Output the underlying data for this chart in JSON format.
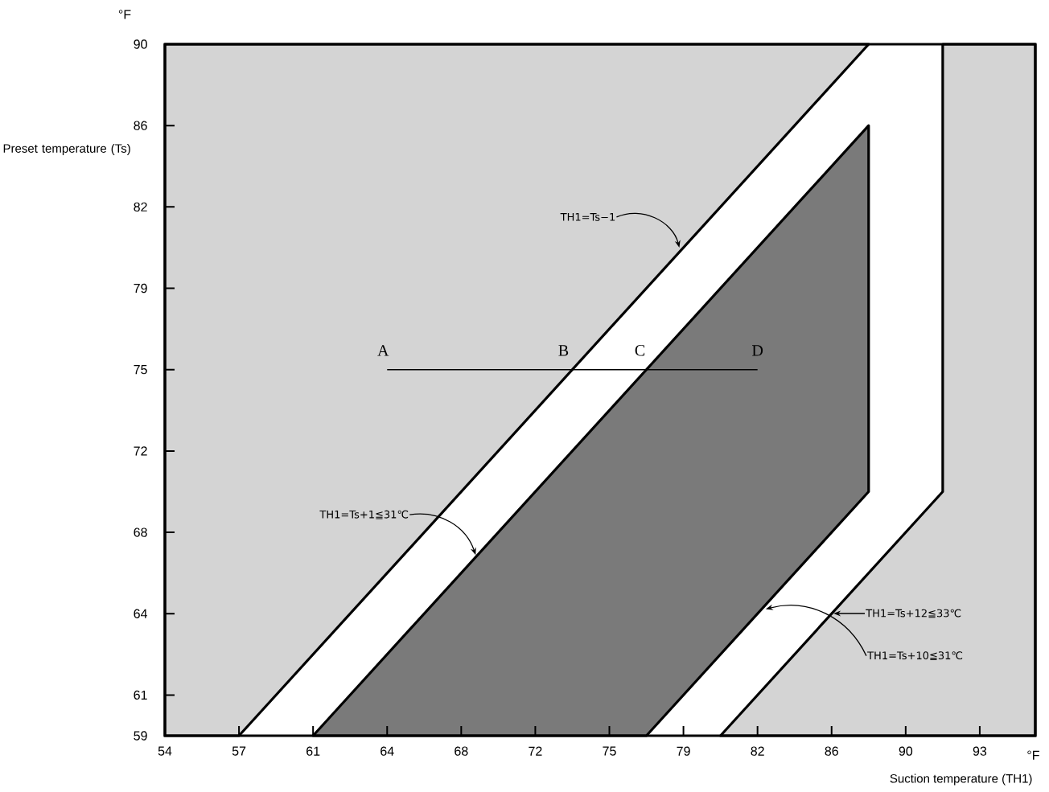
{
  "chart_data": {
    "type": "line",
    "xlabel": "Suction temperature (TH1)",
    "ylabel": "Preset temperature (Ts)",
    "marker": "none",
    "xlim": [
      53.6,
      95.9
    ],
    "ylim": [
      59,
      89.6
    ],
    "xticks": [
      {
        "value": 53.6,
        "label": "54"
      },
      {
        "value": 57.2,
        "label": "57"
      },
      {
        "value": 60.8,
        "label": "61"
      },
      {
        "value": 64.4,
        "label": "64"
      },
      68,
      {
        "value": 71.6,
        "label": "72"
      },
      {
        "value": 75.2,
        "label": "75"
      },
      {
        "value": 78.8,
        "label": "79"
      },
      {
        "value": 82.4,
        "label": "82"
      },
      86,
      {
        "value": 89.6,
        "label": "90"
      },
      {
        "value": 93.2,
        "label": "93"
      }
    ],
    "yticks": [
      59,
      {
        "value": 60.8,
        "label": "61"
      },
      {
        "value": 64.4,
        "label": "64"
      },
      68,
      {
        "value": 71.6,
        "label": "72"
      },
      {
        "value": 75.2,
        "label": "75"
      },
      {
        "value": 78.8,
        "label": "79"
      },
      {
        "value": 82.4,
        "label": "82"
      },
      86,
      {
        "value": 89.6,
        "label": "90"
      }
    ],
    "series": [
      {
        "type": "area",
        "color": "#d4d4d4",
        "x": [
          53.6,
          57.2,
          87.8,
          53.6
        ],
        "values": [
          59,
          59,
          89.6,
          89.6
        ]
      },
      {
        "type": "area",
        "color": "#d4d4d4",
        "x": [
          80.6,
          95.9,
          95.9,
          91.4,
          91.4
        ],
        "values": [
          59,
          59,
          89.6,
          89.6,
          69.8
        ]
      },
      {
        "type": "area",
        "color": "#7a7a7a",
        "x": [
          60.8,
          87.8,
          87.8,
          77
        ],
        "values": [
          59,
          86,
          69.8,
          59
        ]
      },
      {
        "type": "line",
        "color": "#000000",
        "x": [
          64.4,
          82.4
        ],
        "values": [
          75.2,
          75.2
        ]
      }
    ],
    "annotations": [
      "°F",
      "°F",
      {
        "text": "TH1=Ts−1",
        "x": 78.6,
        "y": 80.6
      },
      {
        "text": "TH1=Ts+1≦31℃",
        "x": 68.7,
        "y": 67.0
      },
      "TH1=Ts+12≦33℃",
      {
        "text": "TH1=Ts+10≦31℃",
        "x": 82.8,
        "y": 64.6
      },
      {
        "text": "A",
        "x": 64.4,
        "y": 75.2
      },
      {
        "text": "B",
        "x": 73.4,
        "y": 75.2
      },
      {
        "text": "C",
        "x": 77,
        "y": 75.2
      },
      {
        "text": "D",
        "x": 82.4,
        "y": 75.2
      }
    ]
  }
}
